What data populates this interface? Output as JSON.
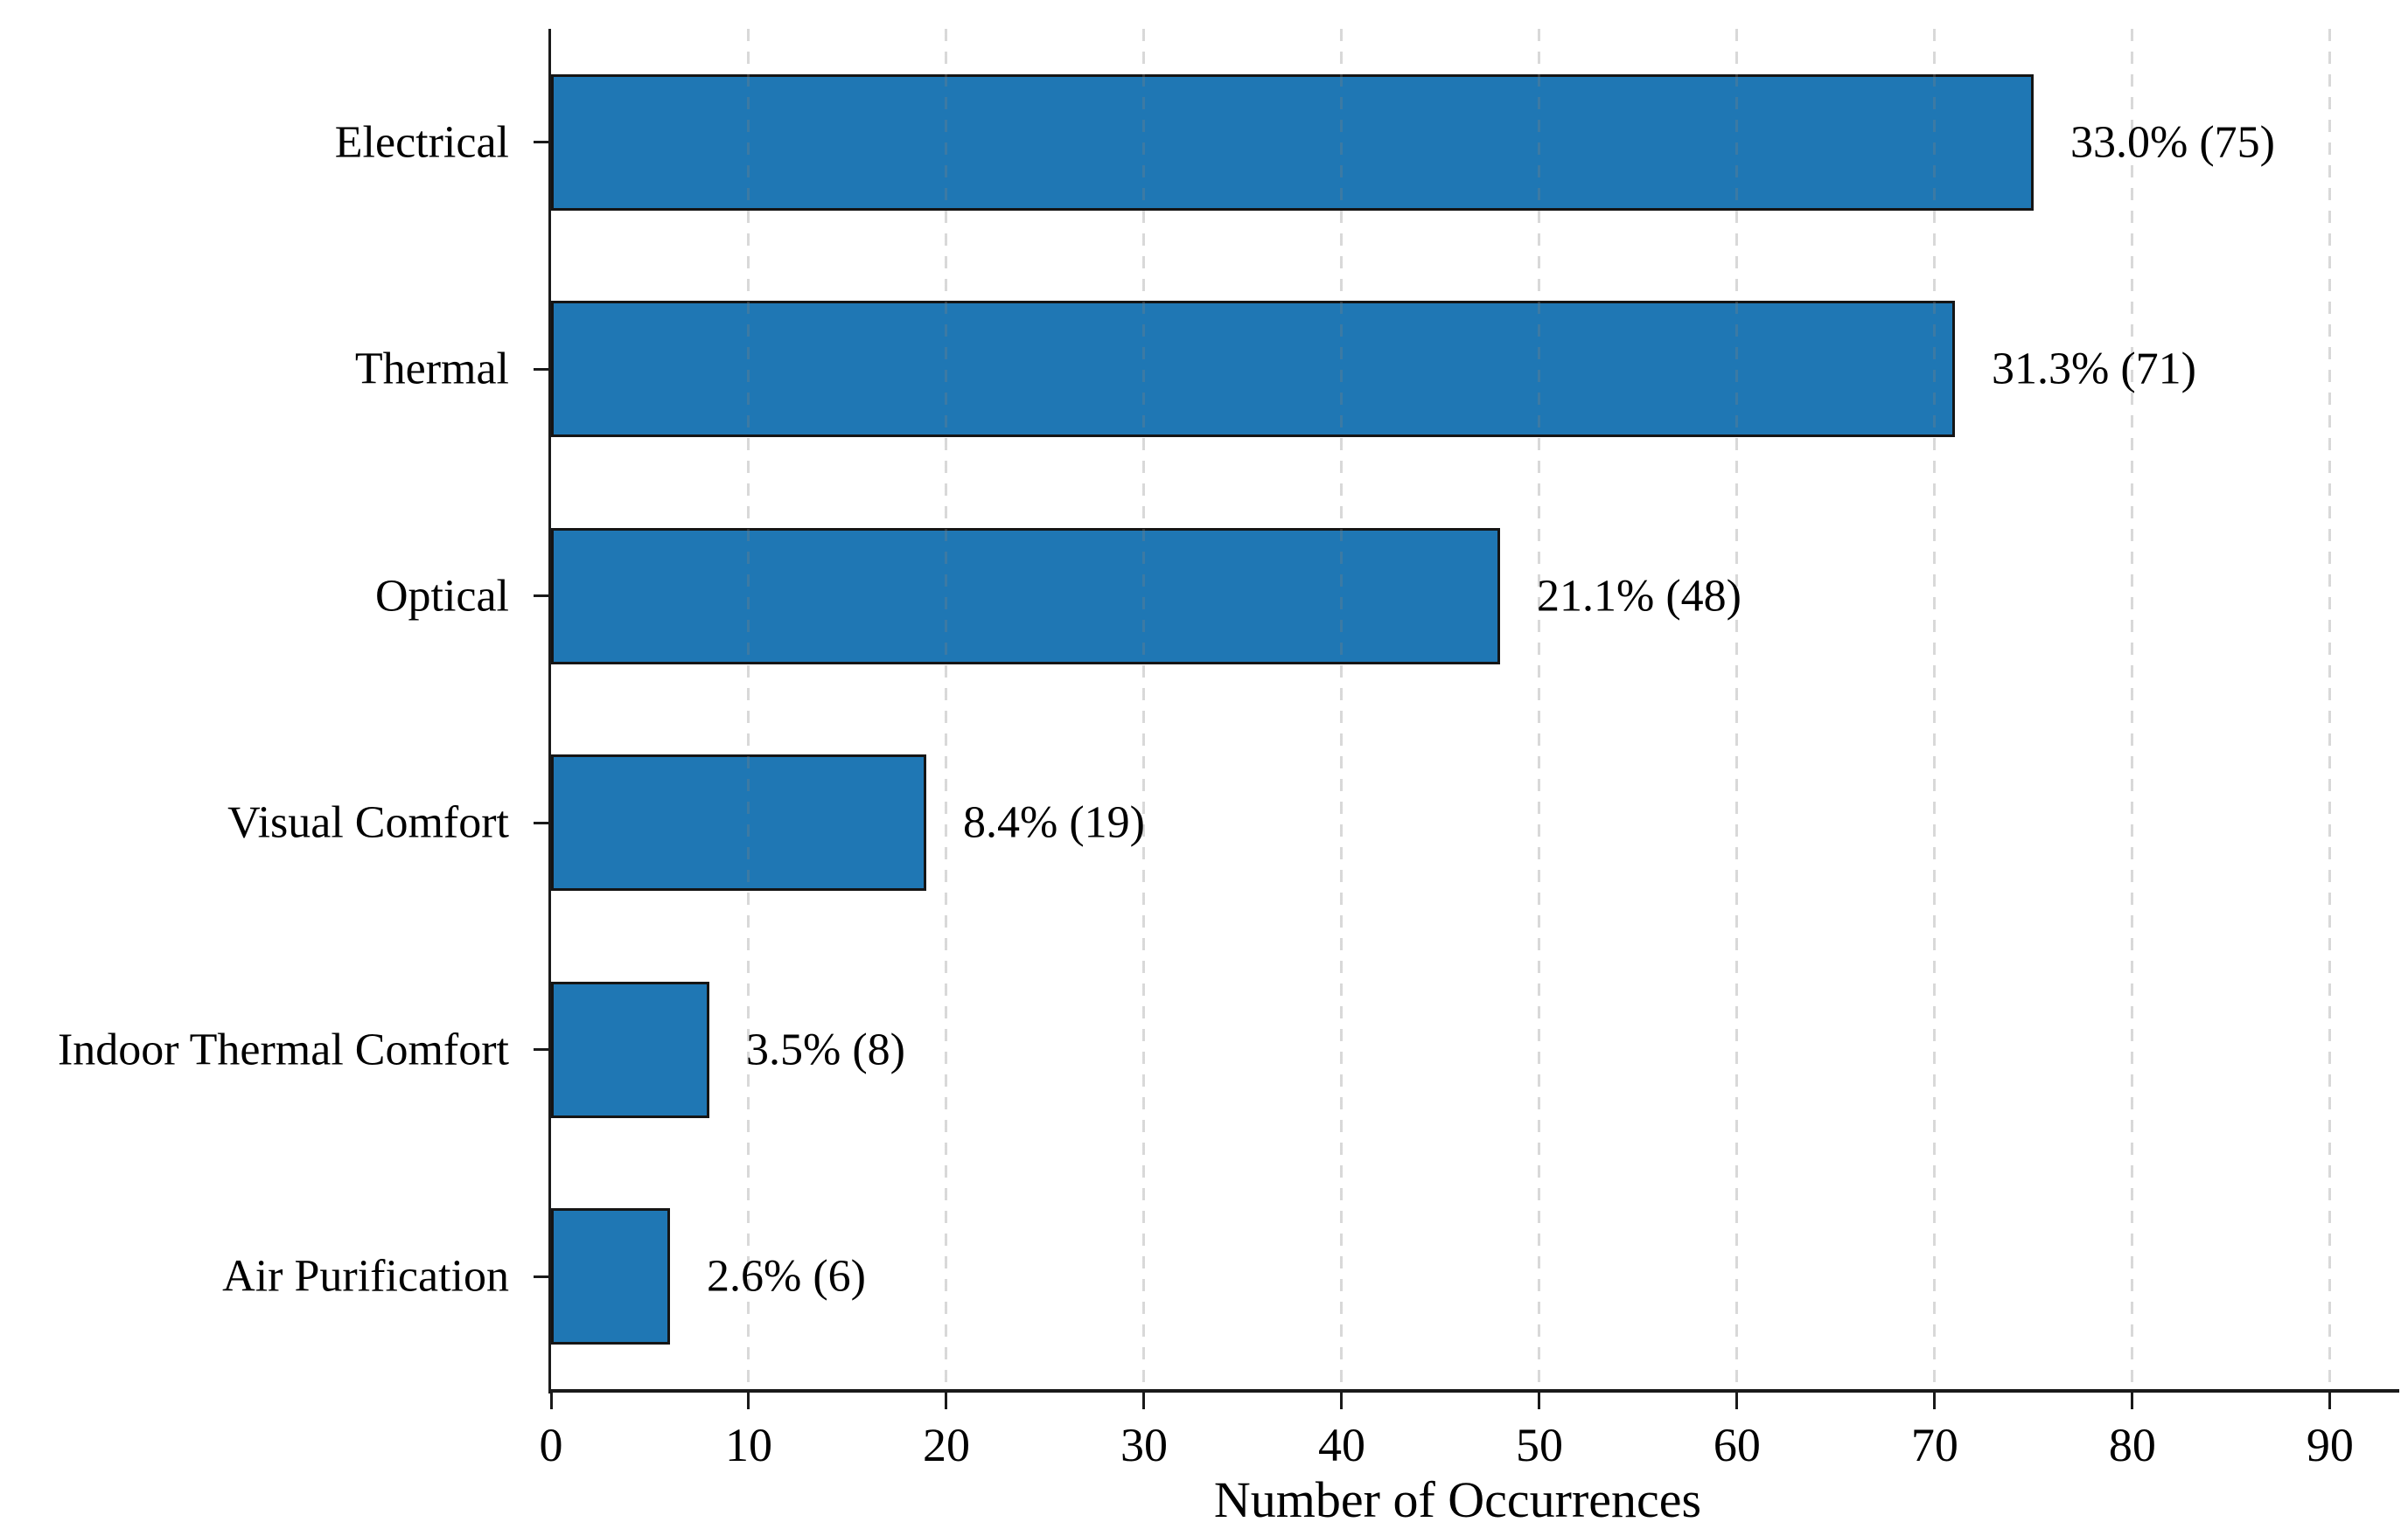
{
  "chart_data": {
    "type": "bar",
    "orientation": "horizontal",
    "title": "",
    "xlabel": "Number of Occurrences",
    "ylabel": "",
    "categories": [
      "Electrical",
      "Thermal",
      "Optical",
      "Visual Comfort",
      "Indoor Thermal Comfort",
      "Air Purification"
    ],
    "values": [
      75,
      71,
      48,
      19,
      8,
      6
    ],
    "bar_labels": [
      "33.0% (75)",
      "31.3% (71)",
      "21.1% (48)",
      "8.4% (19)",
      "3.5% (8)",
      "2.6% (6)"
    ],
    "x_ticks": [
      0,
      10,
      20,
      30,
      40,
      50,
      60,
      70,
      80,
      90
    ],
    "xlim": [
      0,
      93.5
    ],
    "grid": "vertical-dashed-over-bars",
    "legend_position": "none",
    "colors": {
      "bar_fill": "#1f77b4",
      "bar_edge": "#151515",
      "grid_color": "rgba(128,128,128,0.3)",
      "axis_color": "#1a1a1a",
      "text_color": "#000000"
    }
  }
}
